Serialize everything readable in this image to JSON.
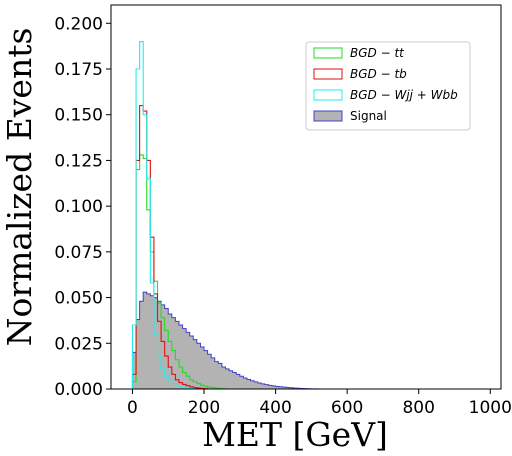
{
  "chart_data": {
    "type": "area",
    "xlabel": "MET [GeV]",
    "ylabel": "Normalized Events",
    "xlim": [
      -60,
      1030
    ],
    "ylim": [
      0,
      0.21
    ],
    "xticks": [
      0,
      200,
      400,
      600,
      800,
      1000
    ],
    "xtick_labels": [
      "0",
      "200",
      "400",
      "600",
      "800",
      "1000"
    ],
    "yticks": [
      0,
      0.025,
      0.05,
      0.075,
      0.1,
      0.125,
      0.15,
      0.175,
      0.2
    ],
    "ytick_labels": [
      "0.000",
      "0.025",
      "0.050",
      "0.075",
      "0.100",
      "0.125",
      "0.150",
      "0.175",
      "0.200"
    ],
    "bin_width": 10,
    "x_start": 0,
    "legend_position": "upper-right",
    "series": [
      {
        "name": "Signal",
        "style": "filled",
        "fill": "#b3b3b3",
        "edge": "#4040c8",
        "values": [
          0.02,
          0.038,
          0.048,
          0.053,
          0.052,
          0.051,
          0.05,
          0.048,
          0.046,
          0.044,
          0.041,
          0.039,
          0.037,
          0.035,
          0.033,
          0.031,
          0.029,
          0.027,
          0.025,
          0.023,
          0.021,
          0.019,
          0.017,
          0.015,
          0.014,
          0.012,
          0.011,
          0.01,
          0.009,
          0.008,
          0.007,
          0.006,
          0.0052,
          0.0045,
          0.0039,
          0.0033,
          0.0028,
          0.0024,
          0.002,
          0.0017,
          0.0014,
          0.0012,
          0.001,
          0.0008,
          0.0007,
          0.0005,
          0.0004,
          0.0003,
          0.0002,
          0.00015,
          0.0001,
          5e-05
        ]
      },
      {
        "name": "BGD-tt",
        "style": "step",
        "color": "#22dd22",
        "values": [
          0.004,
          0.12,
          0.128,
          0.126,
          0.098,
          0.075,
          0.059,
          0.047,
          0.039,
          0.032,
          0.026,
          0.021,
          0.016,
          0.012,
          0.009,
          0.007,
          0.005,
          0.004,
          0.003,
          0.002,
          0.0015,
          0.001,
          0.0008,
          0.0005,
          0.0003,
          0.0002
        ]
      },
      {
        "name": "BGD-tb",
        "style": "step",
        "color": "#dd1111",
        "values": [
          0.008,
          0.125,
          0.155,
          0.152,
          0.125,
          0.083,
          0.052,
          0.037,
          0.026,
          0.018,
          0.012,
          0.008,
          0.005,
          0.0035,
          0.0025,
          0.0018,
          0.0012,
          0.0008,
          0.0005,
          0.0003,
          0.0002
        ]
      },
      {
        "name": "BGD-Wjj+Wbb",
        "style": "step",
        "color": "#22eeee",
        "values": [
          0.035,
          0.175,
          0.19,
          0.15,
          0.115,
          0.058,
          0.03,
          0.018,
          0.011,
          0.007,
          0.005,
          0.003,
          0.002,
          0.0015,
          0.001,
          0.0006,
          0.0004
        ]
      }
    ],
    "legend": [
      {
        "label": "BGD − tt",
        "color": "#22dd22",
        "style": "step",
        "italic": true
      },
      {
        "label": "BGD − tb",
        "color": "#dd1111",
        "style": "step",
        "italic": true
      },
      {
        "label": "BGD − Wjj + Wbb",
        "color": "#22eeee",
        "style": "step",
        "italic": true
      },
      {
        "label": "Signal",
        "fill": "#b3b3b3",
        "edge": "#4040c8",
        "style": "filled",
        "italic": false
      }
    ]
  }
}
